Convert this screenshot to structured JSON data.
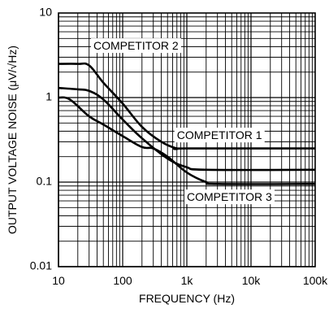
{
  "chart_data": {
    "type": "line",
    "xlabel": "FREQUENCY (Hz)",
    "ylabel": "OUTPUT VOLTAGE NOISE (μV/√Hz)",
    "x_scale": "log",
    "y_scale": "log",
    "xlim": [
      10,
      100000
    ],
    "ylim": [
      0.01,
      10
    ],
    "grid": true,
    "x_ticks": [
      {
        "value": 10,
        "label": "10"
      },
      {
        "value": 100,
        "label": "100"
      },
      {
        "value": 1000,
        "label": "1k"
      },
      {
        "value": 10000,
        "label": "10k"
      },
      {
        "value": 100000,
        "label": "100k"
      }
    ],
    "y_ticks": [
      {
        "value": 0.01,
        "label": "0.01"
      },
      {
        "value": 0.1,
        "label": "0.1"
      },
      {
        "value": 1,
        "label": "1"
      },
      {
        "value": 10,
        "label": "10"
      }
    ],
    "series": [
      {
        "name": "COMPETITOR 2",
        "points": [
          [
            10,
            2.5
          ],
          [
            20,
            2.5
          ],
          [
            30,
            2.4
          ],
          [
            50,
            1.5
          ],
          [
            100,
            0.85
          ],
          [
            200,
            0.45
          ],
          [
            400,
            0.3
          ],
          [
            700,
            0.25
          ],
          [
            1000,
            0.25
          ],
          [
            100000,
            0.25
          ]
        ]
      },
      {
        "name": "COMPETITOR 1",
        "points": [
          [
            10,
            1.3
          ],
          [
            20,
            1.25
          ],
          [
            30,
            1.2
          ],
          [
            50,
            0.95
          ],
          [
            100,
            0.55
          ],
          [
            200,
            0.33
          ],
          [
            500,
            0.19
          ],
          [
            1000,
            0.15
          ],
          [
            2000,
            0.14
          ],
          [
            100000,
            0.14
          ]
        ]
      },
      {
        "name": "COMPETITOR 3",
        "points": [
          [
            10,
            1.0
          ],
          [
            15,
            0.95
          ],
          [
            30,
            0.6
          ],
          [
            50,
            0.48
          ],
          [
            100,
            0.35
          ],
          [
            200,
            0.26
          ],
          [
            300,
            0.25
          ],
          [
            500,
            0.2
          ],
          [
            1000,
            0.13
          ],
          [
            2000,
            0.1
          ],
          [
            3000,
            0.095
          ],
          [
            100000,
            0.095
          ]
        ]
      }
    ],
    "series_labels": [
      {
        "text": "COMPETITOR 2",
        "at": [
          35,
          4.0
        ]
      },
      {
        "text": "COMPETITOR 1",
        "at": [
          700,
          0.35
        ]
      },
      {
        "text": "COMPETITOR 3",
        "at": [
          1000,
          0.065
        ]
      }
    ]
  }
}
